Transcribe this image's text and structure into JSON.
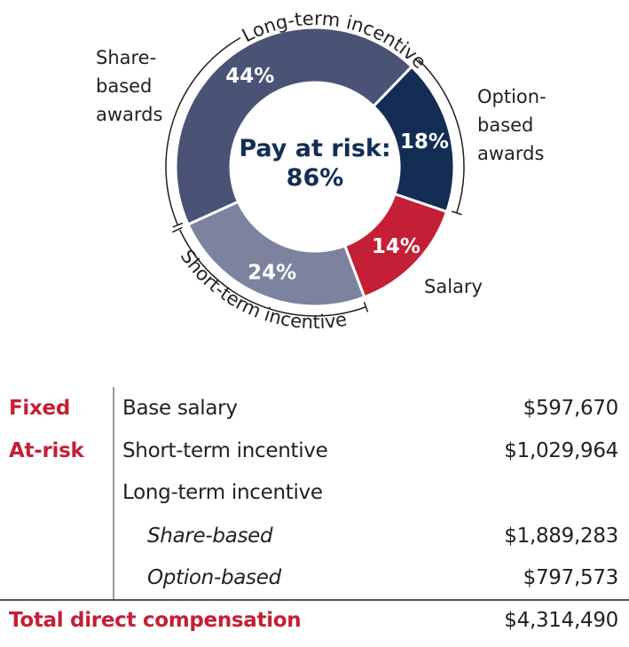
{
  "chart_data": {
    "type": "pie",
    "donut": true,
    "center_label": [
      "Pay at risk:",
      "86%"
    ],
    "slices": [
      {
        "label": [
          "Option-",
          "based",
          "awards"
        ],
        "value": 18,
        "display": "18%",
        "color": "#132d55"
      },
      {
        "label": [
          "Salary"
        ],
        "value": 14,
        "display": "14%",
        "color": "#c41f36"
      },
      {
        "label": [],
        "value": 24,
        "display": "24%",
        "color": "#7d829e"
      },
      {
        "label": [
          "Share-",
          "based",
          "awards"
        ],
        "value": 44,
        "display": "44%",
        "color": "#4a5275"
      }
    ],
    "group_brackets": [
      {
        "label": "Long-term incentive",
        "slices": [
          "Share-based awards",
          "Option-based awards"
        ]
      },
      {
        "label": "Short-term incentive",
        "slices": [
          "Short-term incentive"
        ]
      }
    ],
    "center_color": "#132d55"
  },
  "table": {
    "rows": [
      {
        "group": "Fixed",
        "item": "Base salary",
        "amount": "$597,670",
        "italic": false
      },
      {
        "group": "At-risk",
        "item": "Short-term incentive",
        "amount": "$1,029,964",
        "italic": false
      },
      {
        "group": "",
        "item": "Long-term incentive",
        "amount": "",
        "italic": false
      },
      {
        "group": "",
        "item": "Share-based",
        "amount": "$1,889,283",
        "italic": true
      },
      {
        "group": "",
        "item": "Option-based",
        "amount": "$797,573",
        "italic": true
      }
    ],
    "total": {
      "label": "Total direct compensation",
      "amount": "$4,314,490"
    }
  }
}
